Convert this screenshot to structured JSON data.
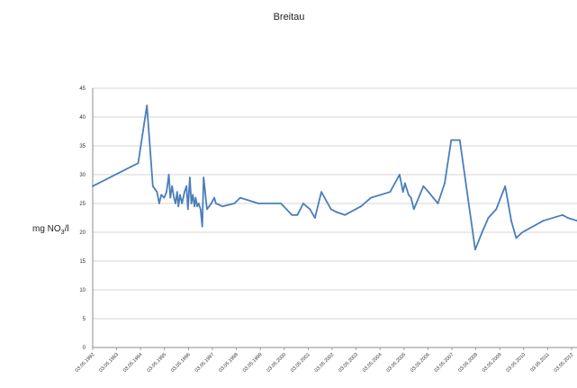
{
  "chart_data": {
    "type": "line",
    "title": "Breitau",
    "xlabel": "",
    "ylabel": "mg NO3/l",
    "ylabel_main": "mg NO",
    "ylabel_sub": "3",
    "ylabel_tail": "/l",
    "ylim": [
      0,
      45
    ],
    "yticks": [
      0,
      5,
      10,
      15,
      20,
      25,
      30,
      35,
      40,
      45
    ],
    "grid": true,
    "line_color": "#4a7ebb",
    "xlim": [
      "1992-05-03",
      "2012-07-03"
    ],
    "x_tick_labels": [
      "03.05.1992",
      "03.05.1993",
      "03.05.1994",
      "03.05.1995",
      "03.05.1996",
      "03.05.1997",
      "03.05.1998",
      "03.05.1999",
      "03.05.2000",
      "03.05.2001",
      "03.05.2002",
      "03.05.2003",
      "03.05.2004",
      "03.05.2005",
      "03.05.2006",
      "03.05.2007",
      "03.05.2008",
      "03.05.2009",
      "03.05.2010",
      "03.05.2011",
      "03.05.2012"
    ],
    "series": [
      {
        "x": [
          "1992-05-03",
          "1994-03-26",
          "1994-08-05",
          "1994-11-04",
          "1995-01-05",
          "1995-02-09",
          "1995-03-12",
          "1995-04-25",
          "1995-05-31",
          "1995-07-05",
          "1995-07-27",
          "1995-08-23",
          "1995-09-21",
          "1995-10-14",
          "1995-11-08",
          "1995-11-28",
          "1995-12-22",
          "1996-01-21",
          "1996-02-28",
          "1996-03-30",
          "1996-04-21",
          "1996-05-19",
          "1996-06-11",
          "1996-07-04",
          "1996-07-29",
          "1996-08-15",
          "1996-09-08",
          "1996-10-01",
          "1996-10-29",
          "1996-11-24",
          "1996-12-15",
          "1997-01-07",
          "1997-02-03",
          "1997-03-09",
          "1997-04-10",
          "1997-05-03",
          "1997-05-27",
          "1997-06-20",
          "1997-09-29",
          "1998-03-27",
          "1998-06-25",
          "1999-03-28",
          "2000-03-05",
          "2000-08-19",
          "2000-11-11",
          "2001-02-08",
          "2001-05-20",
          "2001-08-04",
          "2001-11-10",
          "2002-04-05",
          "2002-06-30",
          "2002-11-04",
          "2003-07-07",
          "2003-12-05",
          "2004-09-21",
          "2005-02-11",
          "2005-04-04",
          "2005-05-04",
          "2005-06-28",
          "2005-08-04",
          "2005-09-17",
          "2006-02-09",
          "2006-04-27",
          "2006-09-17",
          "2006-12-29",
          "2007-04-08",
          "2007-06-07",
          "2007-08-17",
          "2008-04-06",
          "2008-07-21",
          "2008-10-24",
          "2009-02-21",
          "2009-07-07",
          "2009-10-08",
          "2009-12-20",
          "2010-03-26",
          "2011-02-07",
          "2011-11-25",
          "2012-02-15",
          "2012-07-03"
        ],
        "values": [
          28,
          32,
          42,
          28,
          27,
          25,
          26.5,
          26,
          27,
          30,
          26,
          28,
          26,
          25,
          27,
          24.5,
          26.5,
          25,
          27,
          28,
          24,
          29.5,
          25,
          26.5,
          24.5,
          26,
          24.5,
          25,
          24,
          21,
          29.5,
          27,
          24,
          24.5,
          25,
          25.5,
          26,
          25,
          24.5,
          25,
          26,
          25,
          25,
          23,
          23,
          25,
          24,
          22.5,
          27,
          24,
          23.5,
          23,
          24.5,
          26,
          27,
          30,
          27,
          28.5,
          26.5,
          26,
          24,
          28,
          27,
          25,
          28.5,
          36,
          36,
          36,
          17,
          20,
          22.5,
          24,
          28,
          22,
          19,
          20,
          22,
          23,
          22.5,
          22
        ]
      }
    ]
  }
}
